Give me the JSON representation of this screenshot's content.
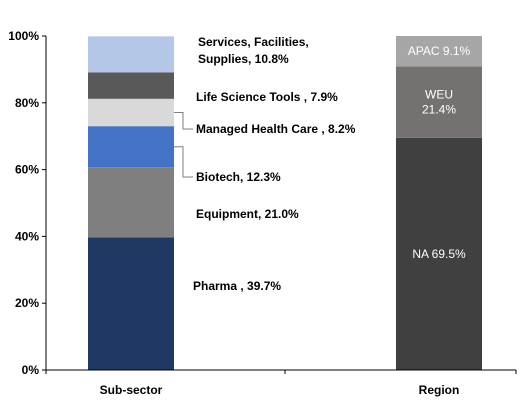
{
  "chart_data": {
    "type": "bar",
    "stacked": true,
    "categories": [
      "Sub-sector",
      "Region"
    ],
    "y_ticks": [
      "0%",
      "20%",
      "40%",
      "60%",
      "80%",
      "100%"
    ],
    "ylim": [
      0,
      100
    ],
    "grid": false,
    "legend": "none",
    "series": [
      {
        "bar": "Sub-sector",
        "segments": [
          {
            "label_lines": [
              "Pharma , 39.7%"
            ],
            "value": 39.7,
            "color": "#203864"
          },
          {
            "label_lines": [
              "Equipment, 21.0%"
            ],
            "value": 21.0,
            "color": "#7f7f7f"
          },
          {
            "label_lines": [
              "Biotech, 12.3%"
            ],
            "value": 12.3,
            "color": "#4472c4"
          },
          {
            "label_lines": [
              "Managed Health Care , 8.2%"
            ],
            "value": 8.2,
            "color": "#d9d9d9"
          },
          {
            "label_lines": [
              "Life Science Tools , 7.9%"
            ],
            "value": 7.9,
            "color": "#595959"
          },
          {
            "label_lines": [
              "Services, Facilities,",
              "Supplies, 10.8%"
            ],
            "value": 10.8,
            "color": "#b4c7e7"
          }
        ]
      },
      {
        "bar": "Region",
        "segments": [
          {
            "label_lines": [
              "NA 69.5%"
            ],
            "value": 69.5,
            "color": "#404040",
            "text_color": "#ffffff"
          },
          {
            "label_lines": [
              "WEU",
              "21.4%"
            ],
            "value": 21.4,
            "color": "#767171",
            "text_color": "#ffffff"
          },
          {
            "label_lines": [
              "APAC 9.1%"
            ],
            "value": 9.1,
            "color": "#a6a6a6",
            "text_color": "#ffffff"
          }
        ]
      }
    ]
  }
}
